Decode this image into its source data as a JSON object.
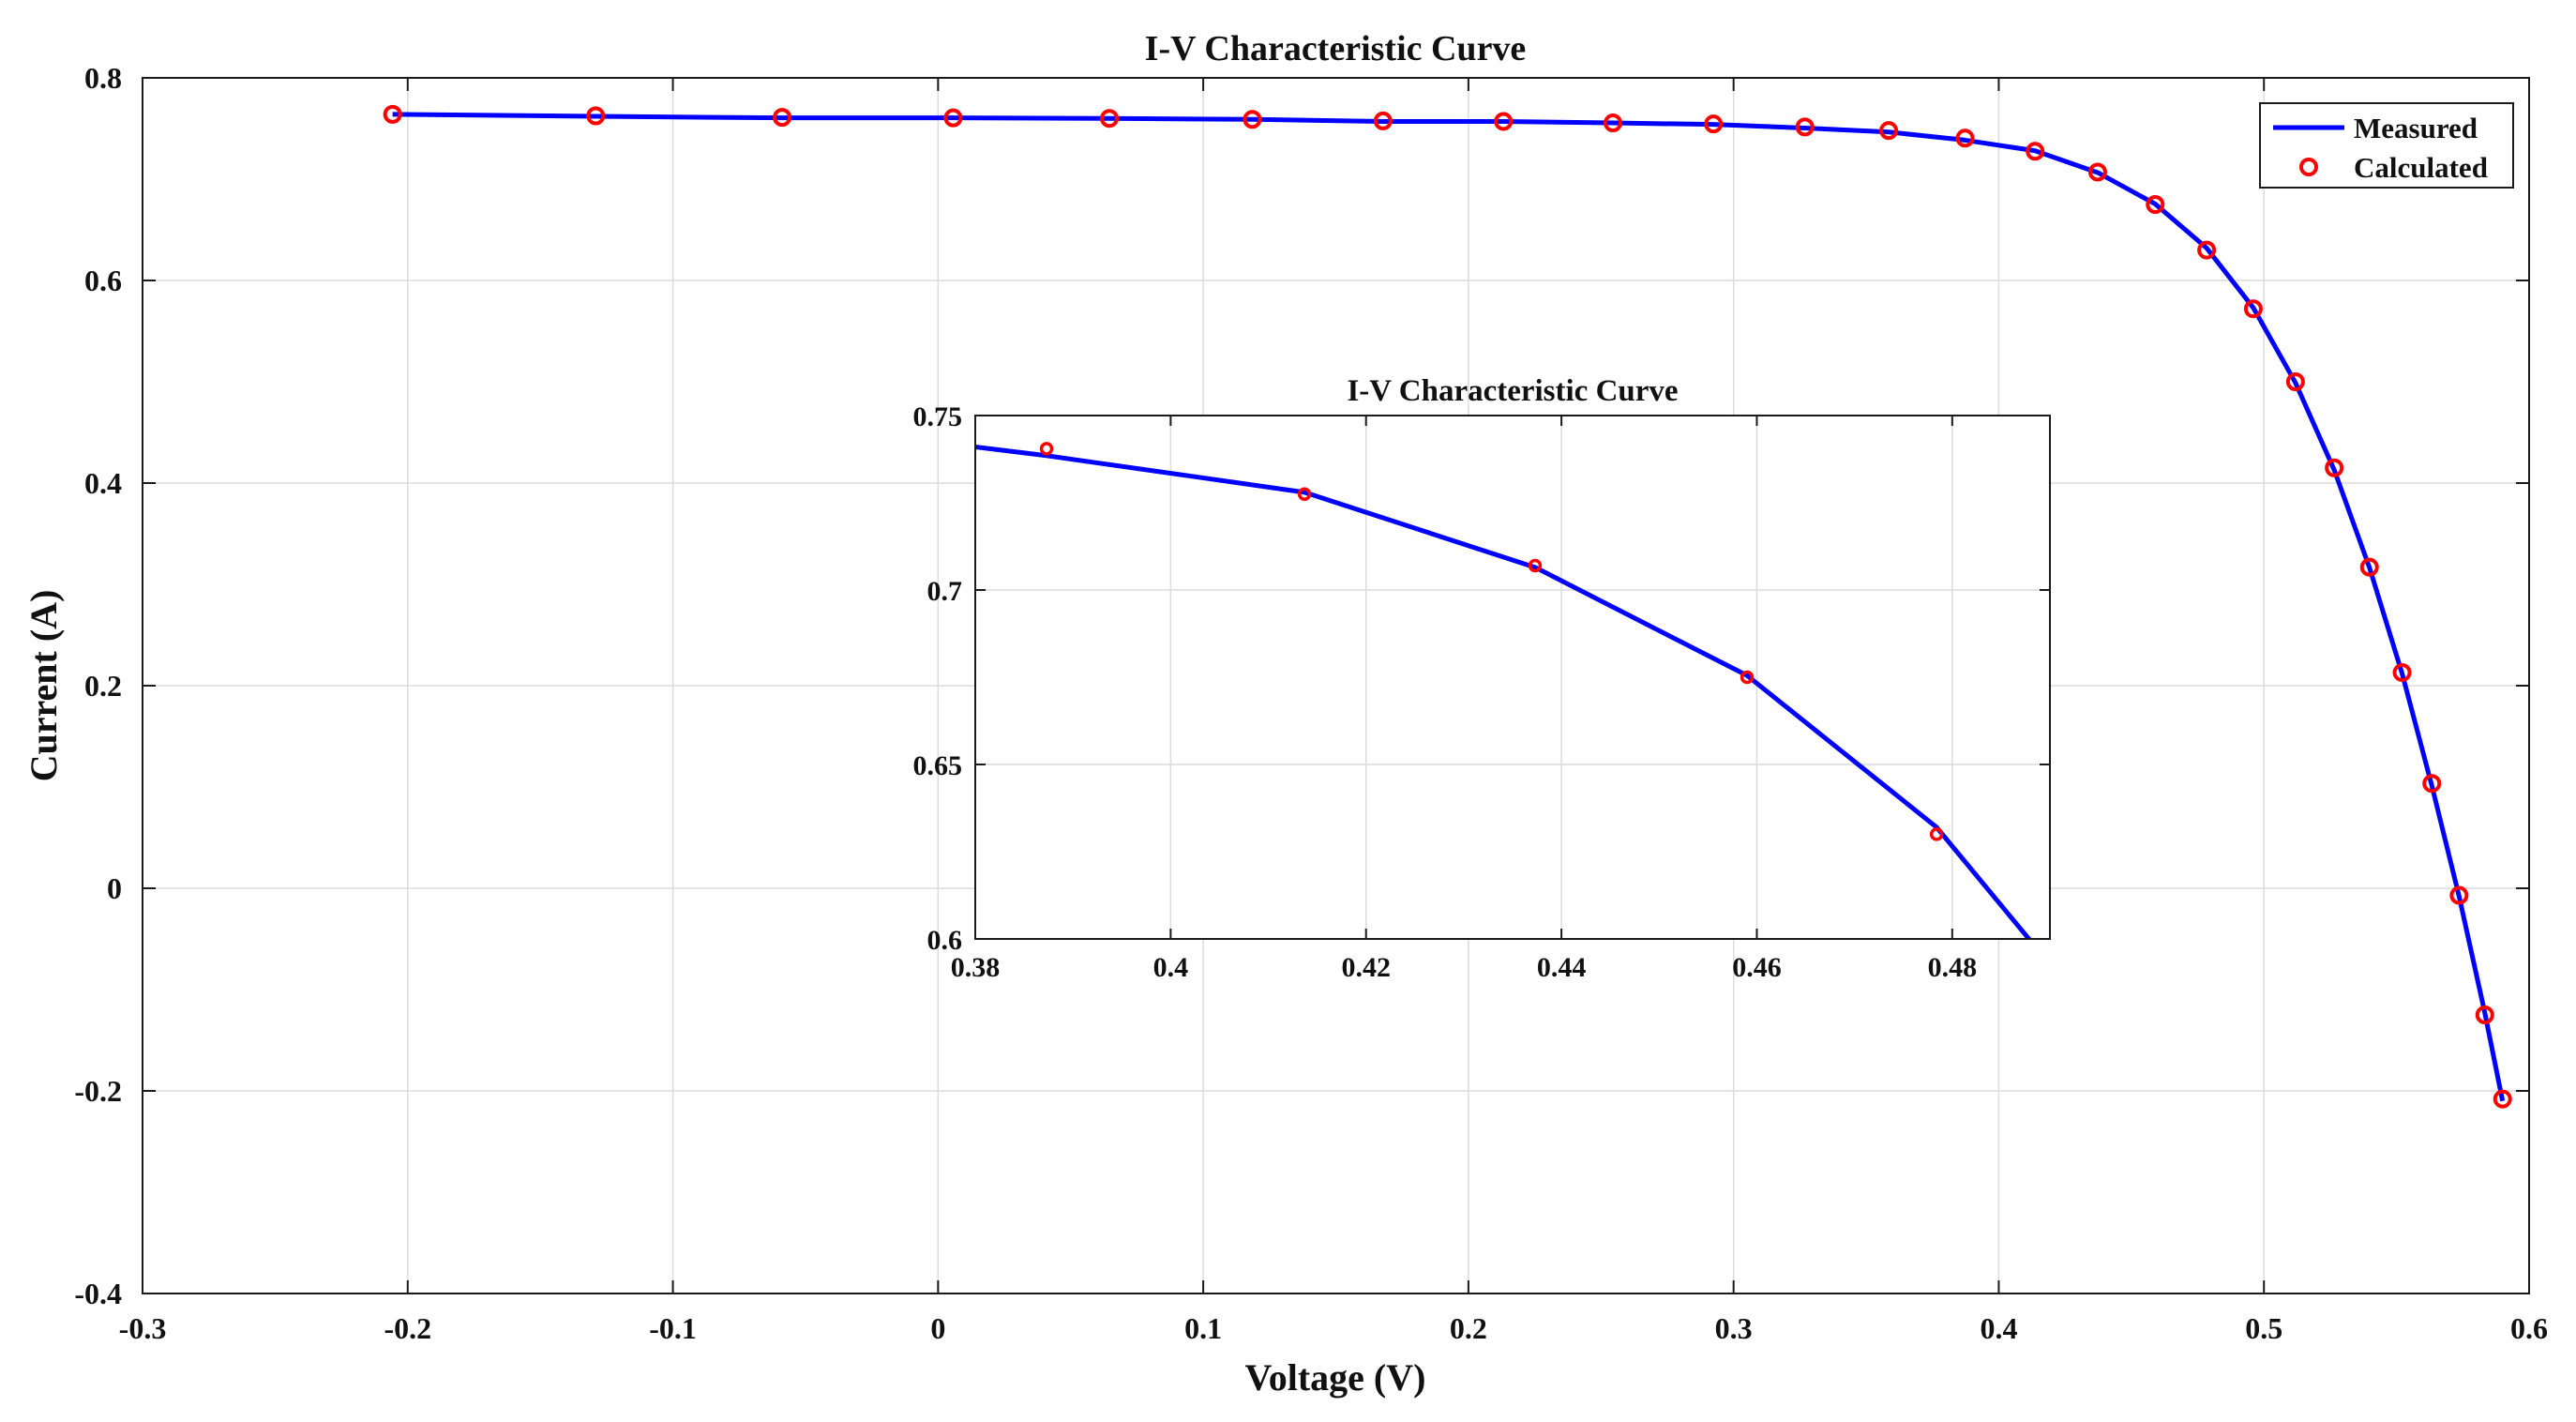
{
  "chart_data": [
    {
      "id": "main",
      "type": "line",
      "title": "I-V Characteristic Curve",
      "xlabel": "Voltage (V)",
      "ylabel": "Current (A)",
      "xlim": [
        -0.3,
        0.6
      ],
      "ylim": [
        -0.4,
        0.8
      ],
      "xticks": [
        -0.3,
        -0.2,
        -0.1,
        0,
        0.1,
        0.2,
        0.3,
        0.4,
        0.5,
        0.6
      ],
      "xtick_labels": [
        "-0.3",
        "-0.2",
        "-0.1",
        "0",
        "0.1",
        "0.2",
        "0.3",
        "0.4",
        "0.5",
        "0.6"
      ],
      "yticks": [
        -0.4,
        -0.2,
        0,
        0.2,
        0.4,
        0.6,
        0.8
      ],
      "ytick_labels": [
        "-0.4",
        "-0.2",
        "0",
        "0.2",
        "0.4",
        "0.6",
        "0.8"
      ],
      "grid": true,
      "legend_position": "top-right",
      "series": [
        {
          "name": "Measured",
          "style": "line",
          "color": "#0000ff",
          "x": [
            -0.2057,
            -0.1291,
            -0.0588,
            0.0057,
            0.0646,
            0.1185,
            0.1678,
            0.2132,
            0.2545,
            0.2924,
            0.3269,
            0.3585,
            0.3873,
            0.4137,
            0.4373,
            0.459,
            0.4784,
            0.496,
            0.5119,
            0.5265,
            0.5398,
            0.5521,
            0.5633,
            0.5736,
            0.5833,
            0.59
          ],
          "y": [
            0.764,
            0.762,
            0.7605,
            0.7605,
            0.76,
            0.759,
            0.757,
            0.757,
            0.7555,
            0.754,
            0.7505,
            0.7465,
            0.7385,
            0.728,
            0.7065,
            0.6755,
            0.632,
            0.573,
            0.499,
            0.413,
            0.3165,
            0.212,
            0.1015,
            -0.008,
            -0.123,
            -0.21
          ]
        },
        {
          "name": "Calculated",
          "style": "markers",
          "marker": "circle",
          "color": "#ff0000",
          "x": [
            -0.2057,
            -0.1291,
            -0.0588,
            0.0057,
            0.0646,
            0.1185,
            0.1678,
            0.2132,
            0.2545,
            0.2924,
            0.3269,
            0.3585,
            0.3873,
            0.4137,
            0.4373,
            0.459,
            0.4784,
            0.496,
            0.5119,
            0.5265,
            0.5398,
            0.5521,
            0.5633,
            0.5736,
            0.5833,
            0.59
          ],
          "y": [
            0.764,
            0.7625,
            0.761,
            0.7605,
            0.76,
            0.759,
            0.7575,
            0.757,
            0.7555,
            0.7545,
            0.7515,
            0.748,
            0.7405,
            0.7275,
            0.707,
            0.675,
            0.63,
            0.572,
            0.5,
            0.415,
            0.317,
            0.213,
            0.1035,
            -0.007,
            -0.125,
            -0.208
          ]
        }
      ]
    },
    {
      "id": "inset",
      "type": "line",
      "title": "I-V Characteristic Curve",
      "xlabel": "",
      "ylabel": "",
      "xlim": [
        0.38,
        0.49
      ],
      "ylim": [
        0.6,
        0.75
      ],
      "xticks": [
        0.38,
        0.4,
        0.42,
        0.44,
        0.46,
        0.48
      ],
      "xtick_labels": [
        "0.38",
        "0.4",
        "0.42",
        "0.44",
        "0.46",
        "0.48"
      ],
      "yticks": [
        0.6,
        0.65,
        0.7,
        0.75
      ],
      "ytick_labels": [
        "0.6",
        "0.65",
        "0.7",
        "0.75"
      ],
      "grid": true,
      "series": [
        {
          "name": "Measured",
          "style": "line",
          "color": "#0000ff",
          "x": [
            0.38,
            0.3873,
            0.4137,
            0.4373,
            0.459,
            0.4784,
            0.488
          ],
          "y": [
            0.741,
            0.7385,
            0.728,
            0.7065,
            0.6755,
            0.632,
            0.5995
          ]
        },
        {
          "name": "Calculated",
          "style": "markers",
          "marker": "circle",
          "color": "#ff0000",
          "x": [
            0.3873,
            0.4137,
            0.4373,
            0.459,
            0.4784
          ],
          "y": [
            0.7405,
            0.7275,
            0.707,
            0.675,
            0.63
          ]
        }
      ]
    }
  ]
}
